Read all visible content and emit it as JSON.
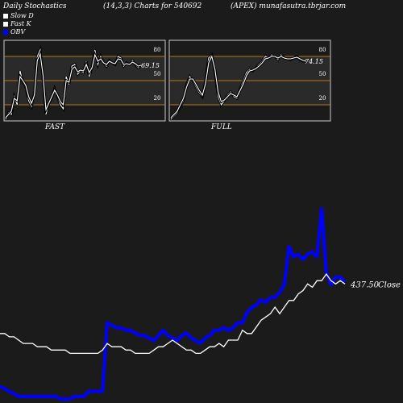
{
  "header": {
    "left": "Daily Stochastics",
    "center": "(14,3,3) Charts for 540692",
    "right": "(APEX) munafasutra.tbrjar.com"
  },
  "legend": [
    {
      "label": "Slow  D",
      "color": "#ffffff"
    },
    {
      "label": "Fast K",
      "color": "#ffffff"
    },
    {
      "label": "OBV",
      "color": "#0000ff"
    }
  ],
  "chart_data": [
    {
      "type": "line",
      "panel": "FAST",
      "ylim": [
        0,
        100
      ],
      "levels": [
        80,
        50,
        20
      ],
      "level_labels": [
        "80",
        "50",
        "20"
      ],
      "last_value_label": "69.15",
      "series": [
        {
          "values": [
            2,
            10,
            8,
            30,
            20,
            62,
            48,
            42,
            25,
            18,
            35,
            80,
            88,
            50,
            8,
            22,
            28,
            40,
            30,
            20,
            15,
            55,
            45,
            68,
            70,
            58,
            62,
            60,
            74,
            55,
            67,
            88,
            70,
            80,
            72,
            68,
            75,
            72,
            70,
            80,
            78,
            68,
            72,
            70,
            75,
            70,
            66,
            69
          ]
        },
        {
          "values": [
            4,
            8,
            12,
            28,
            25,
            55,
            50,
            44,
            30,
            22,
            32,
            75,
            83,
            56,
            14,
            22,
            30,
            38,
            32,
            24,
            20,
            50,
            48,
            64,
            67,
            61,
            63,
            62,
            70,
            60,
            66,
            82,
            74,
            77,
            72,
            70,
            74,
            72,
            71,
            77,
            76,
            70,
            71,
            70,
            73,
            71,
            68,
            69
          ]
        }
      ]
    },
    {
      "type": "line",
      "panel": "FULL",
      "ylim": [
        0,
        100
      ],
      "levels": [
        80,
        50,
        20
      ],
      "level_labels": [
        "80",
        "50",
        "20"
      ],
      "last_value_label": "74.15",
      "series": [
        {
          "values": [
            2,
            6,
            10,
            18,
            25,
            45,
            55,
            50,
            42,
            35,
            30,
            50,
            78,
            82,
            60,
            30,
            20,
            25,
            32,
            36,
            30,
            28,
            40,
            50,
            60,
            64,
            62,
            66,
            70,
            74,
            80,
            78,
            82,
            80,
            76,
            82,
            78,
            77,
            76,
            78,
            80,
            76,
            74,
            74
          ]
        },
        {
          "values": [
            4,
            8,
            12,
            20,
            28,
            42,
            52,
            52,
            45,
            38,
            32,
            46,
            72,
            80,
            64,
            36,
            24,
            26,
            30,
            34,
            32,
            30,
            38,
            46,
            56,
            62,
            63,
            65,
            68,
            72,
            77,
            78,
            80,
            80,
            78,
            80,
            78,
            77,
            77,
            78,
            79,
            77,
            75,
            74
          ]
        }
      ]
    },
    {
      "type": "line",
      "panel": "price-obv",
      "price_label": "437.50",
      "close_label": "Close",
      "series": [
        {
          "name": "OBV",
          "values": [
            5,
            4,
            3,
            2,
            1,
            1,
            1,
            1,
            1,
            1,
            1,
            1,
            1,
            0,
            0,
            0,
            1,
            1,
            1,
            3,
            3,
            3,
            3,
            30,
            29,
            28,
            28,
            27,
            27,
            26,
            25,
            25,
            24,
            23,
            25,
            27,
            25,
            24,
            23,
            25,
            26,
            24,
            23,
            22,
            24,
            25,
            27,
            27,
            28,
            27,
            28,
            30,
            30,
            34,
            36,
            37,
            39,
            38,
            40,
            40,
            42,
            45,
            60,
            56,
            57,
            55,
            57,
            58,
            56,
            75,
            50,
            45,
            48,
            48,
            46
          ]
        },
        {
          "name": "Close",
          "values": [
            32,
            32,
            31,
            31,
            30,
            29,
            29,
            29,
            28,
            28,
            28,
            27,
            27,
            27,
            27,
            26,
            26,
            26,
            26,
            26,
            26,
            26,
            27,
            29,
            28,
            28,
            28,
            27,
            27,
            26,
            26,
            26,
            26,
            27,
            28,
            28,
            29,
            30,
            29,
            28,
            27,
            27,
            26,
            26,
            27,
            28,
            28,
            29,
            28,
            30,
            30,
            30,
            33,
            32,
            32,
            34,
            36,
            37,
            38,
            40,
            38,
            40,
            42,
            42,
            44,
            45,
            47,
            46,
            48,
            48,
            50,
            48,
            47,
            48,
            47
          ]
        }
      ]
    }
  ]
}
